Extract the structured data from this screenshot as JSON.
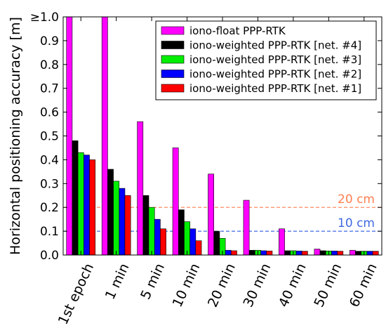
{
  "chart_data": {
    "type": "bar",
    "title": "",
    "xlabel": "",
    "ylabel": "Horizontal positioning accuracy [m]",
    "ylim": [
      0,
      1.0
    ],
    "yticks": [
      0.0,
      0.1,
      0.2,
      0.3,
      0.4,
      0.5,
      0.6,
      0.7,
      0.8,
      0.9
    ],
    "ytick_labels": [
      "0.0",
      "0.1",
      "0.2",
      "0.3",
      "0.4",
      "0.5",
      "0.6",
      "0.7",
      "0.8",
      "0.9"
    ],
    "ytop_label": "≥1.0",
    "grid": false,
    "legend_position": "top-right",
    "categories": [
      "1st epoch",
      "1 min",
      "5 min",
      "10 min",
      "20 min",
      "30 min",
      "40 min",
      "50 min",
      "60 min"
    ],
    "series": [
      {
        "name": "iono-float PPP-RTK",
        "color": "#ff00ff",
        "values": [
          1.0,
          1.0,
          0.56,
          0.45,
          0.34,
          0.23,
          0.11,
          0.025,
          0.02
        ]
      },
      {
        "name": "iono-weighted PPP-RTK [net. #4]",
        "color": "#000000",
        "values": [
          0.48,
          0.36,
          0.25,
          0.19,
          0.1,
          0.02,
          0.018,
          0.018,
          0.016
        ]
      },
      {
        "name": "iono-weighted PPP-RTK [net. #3]",
        "color": "#00ee00",
        "values": [
          0.43,
          0.31,
          0.2,
          0.14,
          0.07,
          0.02,
          0.018,
          0.017,
          0.016
        ]
      },
      {
        "name": "iono-weighted PPP-RTK [net. #2]",
        "color": "#0000ff",
        "values": [
          0.42,
          0.28,
          0.15,
          0.11,
          0.02,
          0.018,
          0.017,
          0.017,
          0.016
        ]
      },
      {
        "name": "iono-weighted PPP-RTK [net. #1]",
        "color": "#ff0000",
        "values": [
          0.4,
          0.25,
          0.11,
          0.06,
          0.018,
          0.017,
          0.016,
          0.016,
          0.016
        ]
      }
    ],
    "reference_lines": [
      {
        "value": 0.2,
        "label": "20 cm",
        "color": "#ff7f50"
      },
      {
        "value": 0.1,
        "label": "10 cm",
        "color": "#4169e1"
      }
    ]
  }
}
